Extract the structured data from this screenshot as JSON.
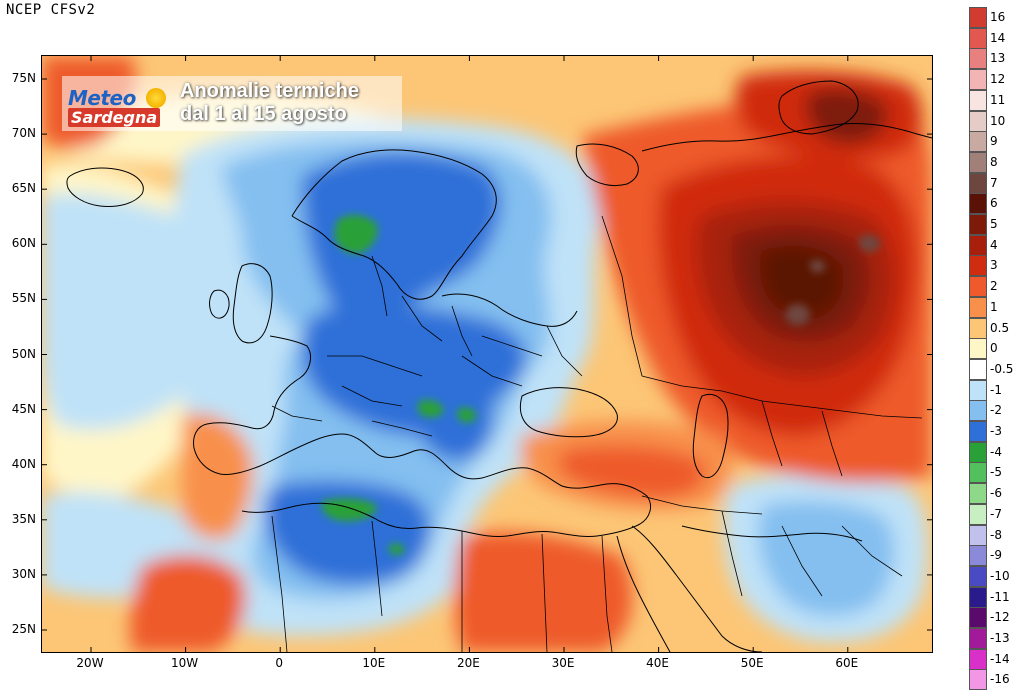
{
  "header": {
    "model": "NCEP CFSv2"
  },
  "logo": {
    "line1": "Meteo",
    "line2": "Sardegna"
  },
  "title": {
    "line1": "Anomalie termiche",
    "line2": "dal 1 al 15 agosto"
  },
  "axes": {
    "lat_labels": [
      "75N",
      "70N",
      "65N",
      "60N",
      "55N",
      "50N",
      "45N",
      "40N",
      "35N",
      "30N",
      "25N"
    ],
    "lon_labels": [
      "20W",
      "10W",
      "0",
      "10E",
      "20E",
      "30E",
      "40E",
      "50E",
      "60E"
    ]
  },
  "legend": {
    "items": [
      {
        "label": "16",
        "color": "#d23b2f"
      },
      {
        "label": "14",
        "color": "#e05850"
      },
      {
        "label": "13",
        "color": "#e88080"
      },
      {
        "label": "12",
        "color": "#f2b4b4"
      },
      {
        "label": "11",
        "color": "#f8e4e0"
      },
      {
        "label": "10",
        "color": "#e6ccc6"
      },
      {
        "label": "9",
        "color": "#c8aaa2"
      },
      {
        "label": "8",
        "color": "#a08078"
      },
      {
        "label": "7",
        "color": "#6e4640"
      },
      {
        "label": "6",
        "color": "#5a1206"
      },
      {
        "label": "5",
        "color": "#7e1a0a"
      },
      {
        "label": "4",
        "color": "#a8200c"
      },
      {
        "label": "3",
        "color": "#d02c10"
      },
      {
        "label": "2",
        "color": "#ee5a2c"
      },
      {
        "label": "1",
        "color": "#f8904c"
      },
      {
        "label": "0.5",
        "color": "#fcc676"
      },
      {
        "label": "0",
        "color": "#fff6c8"
      },
      {
        "label": "-0.5",
        "color": "#ffffff"
      },
      {
        "label": "-1",
        "color": "#bfe2f8"
      },
      {
        "label": "-2",
        "color": "#84bff0"
      },
      {
        "label": "-3",
        "color": "#2f6fd8"
      },
      {
        "label": "-4",
        "color": "#2aa038"
      },
      {
        "label": "-5",
        "color": "#52c05c"
      },
      {
        "label": "-6",
        "color": "#8ed889"
      },
      {
        "label": "-7",
        "color": "#c8efc2"
      },
      {
        "label": "-8",
        "color": "#c0c2ec"
      },
      {
        "label": "-9",
        "color": "#8a8ad8"
      },
      {
        "label": "-10",
        "color": "#4a4ac2"
      },
      {
        "label": "-11",
        "color": "#2a1a8c"
      },
      {
        "label": "-12",
        "color": "#5a0a6a"
      },
      {
        "label": "-13",
        "color": "#a01a9a"
      },
      {
        "label": "-14",
        "color": "#d830c8"
      },
      {
        "label": "-16",
        "color": "#f296e6"
      }
    ]
  },
  "map_colors": {
    "background_warm": "#fcc676",
    "neutral": "#fff6c8",
    "cool_light": "#bfe2f8",
    "cool_mid": "#84bff0",
    "cool_deep": "#2f6fd8",
    "cool_green": "#2aa038",
    "warm_light": "#f8904c",
    "warm_mid": "#ee5a2c",
    "warm_deep": "#d02c10",
    "warm_darker": "#a8200c",
    "warm_darkest": "#7e1a0a",
    "warm_core": "#5a1206",
    "warm_peak": "#6e4640"
  }
}
